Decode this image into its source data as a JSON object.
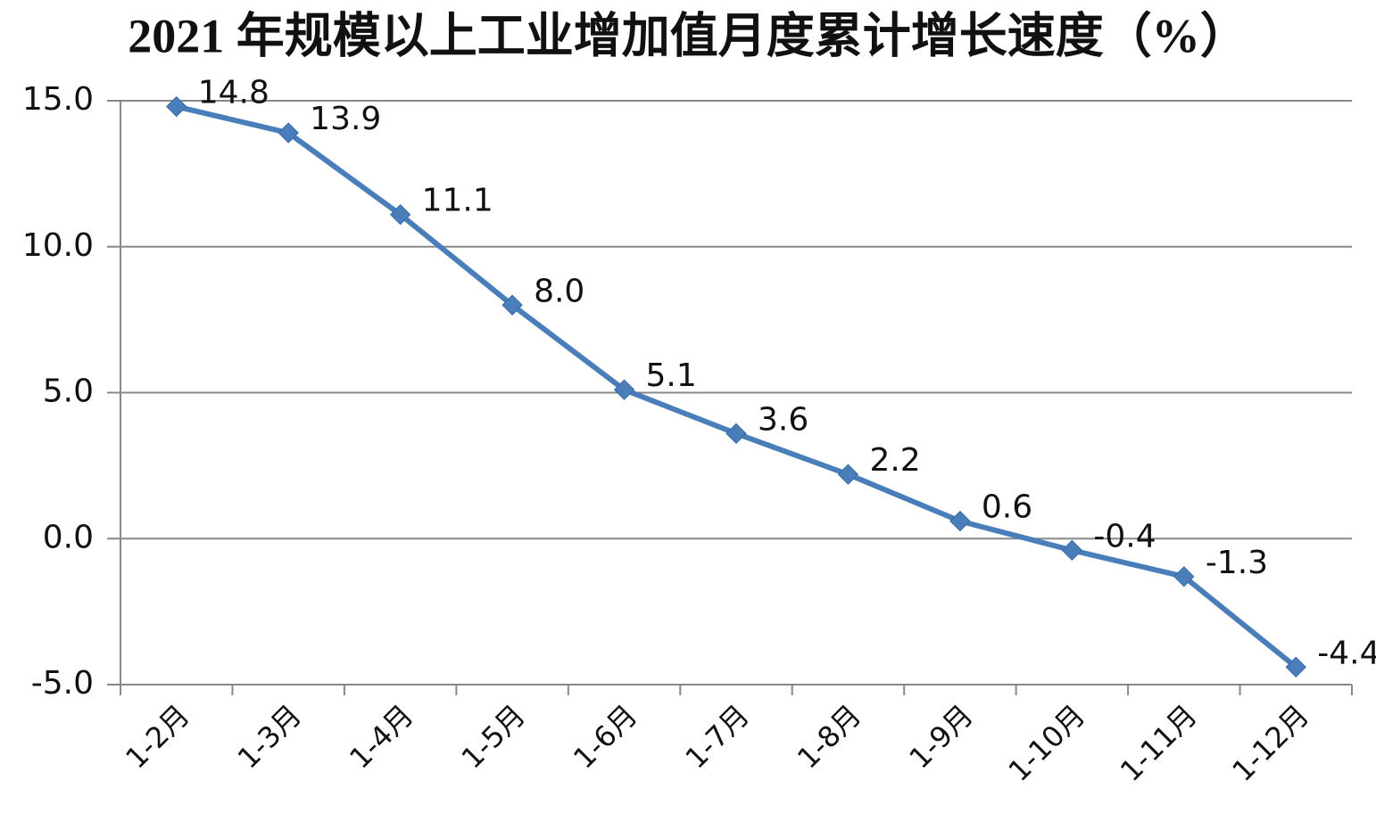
{
  "chart_data": {
    "type": "line",
    "title": "2021 年规模以上工业增加值月度累计增长速度（%）",
    "categories": [
      "1-2月",
      "1-3月",
      "1-4月",
      "1-5月",
      "1-6月",
      "1-7月",
      "1-8月",
      "1-9月",
      "1-10月",
      "1-11月",
      "1-12月"
    ],
    "values": [
      14.8,
      13.9,
      11.1,
      8.0,
      5.1,
      3.6,
      2.2,
      0.6,
      -0.4,
      -1.3,
      -4.4
    ],
    "value_labels": [
      "14.8",
      "13.9",
      "11.1",
      "8.0",
      "5.1",
      "3.6",
      "2.2",
      "0.6",
      "-0.4",
      "-1.3",
      "-4.4"
    ],
    "color": "#4a7ebb",
    "ylim": [
      -5,
      15
    ],
    "yticks": [
      {
        "value": -5,
        "label": "-5.0"
      },
      {
        "value": 0,
        "label": "0.0"
      },
      {
        "value": 5,
        "label": "5.0"
      },
      {
        "value": 10,
        "label": "10.0"
      },
      {
        "value": 15,
        "label": "15.0"
      }
    ],
    "grid": true
  }
}
